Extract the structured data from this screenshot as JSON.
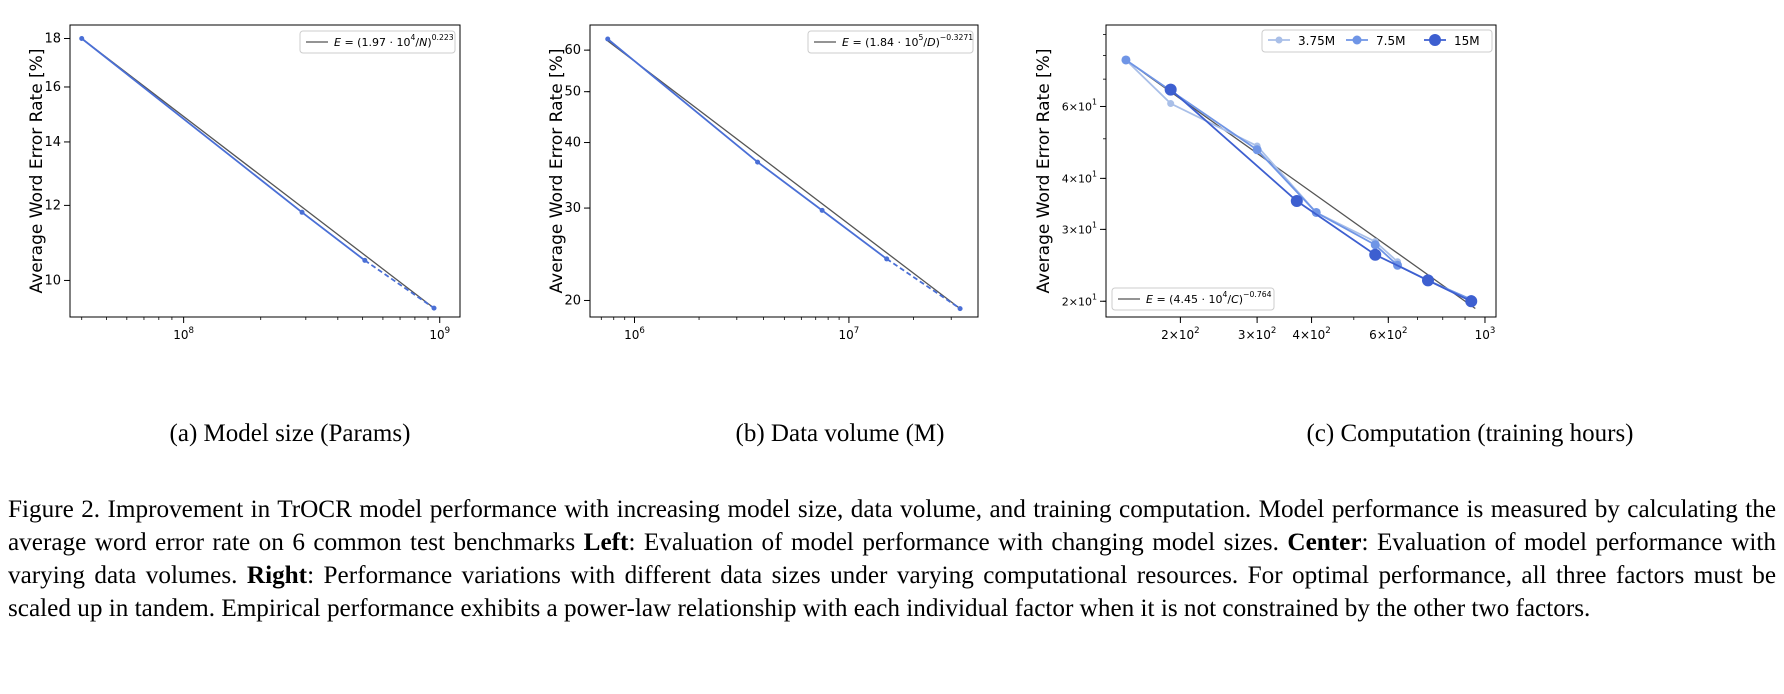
{
  "colors": {
    "series_main": "#4a6fd6",
    "fit_line": "#555555",
    "series_light": "#a9bfe8",
    "series_mid": "#6f95e6",
    "series_dark": "#3d5fd0",
    "axes": "#000000"
  },
  "chart_data": [
    {
      "type": "line",
      "xscale": "log",
      "yscale": "log",
      "xlabel": "",
      "ylabel": "Average Word Error Rate [%]",
      "xlim": [
        36000000,
        1200000000
      ],
      "ylim": [
        9.15,
        18.6
      ],
      "xticks": [
        {
          "value": 100000000,
          "label": "10^8"
        },
        {
          "value": 1000000000,
          "label": "10^9"
        }
      ],
      "yticks": [
        {
          "value": 10,
          "label": "10"
        },
        {
          "value": 12,
          "label": "12"
        },
        {
          "value": 14,
          "label": "14"
        },
        {
          "value": 16,
          "label": "16"
        },
        {
          "value": 18,
          "label": "18"
        }
      ],
      "legend": {
        "position": "top-right",
        "entries": [
          {
            "type": "fit",
            "base": "1.97 · 10",
            "exp_inner": "4",
            "var": "N",
            "exp_outer": "0.223"
          }
        ]
      },
      "series": [
        {
          "role": "data",
          "x": [
            40000000,
            290000000,
            510000000,
            950000000
          ],
          "y": [
            18.0,
            11.8,
            10.5,
            9.35
          ]
        }
      ],
      "fit": {
        "role": "fit",
        "x": [
          40000000,
          950000000
        ],
        "y": [
          18.0,
          9.35
        ]
      },
      "caption": "(a) Model size (Params)"
    },
    {
      "type": "line",
      "xscale": "log",
      "yscale": "log",
      "xlabel": "",
      "ylabel": "Average Word Error Rate [%]",
      "xlim": [
        620000,
        40000000
      ],
      "ylim": [
        18.6,
        67
      ],
      "xticks": [
        {
          "value": 1000000,
          "label": "10^6"
        },
        {
          "value": 10000000,
          "label": "10^7"
        }
      ],
      "yticks": [
        {
          "value": 20,
          "label": "20"
        },
        {
          "value": 30,
          "label": "30"
        },
        {
          "value": 40,
          "label": "40"
        },
        {
          "value": 50,
          "label": "50"
        },
        {
          "value": 60,
          "label": "60"
        }
      ],
      "legend": {
        "position": "top-right",
        "entries": [
          {
            "type": "fit",
            "base": "1.84 · 10",
            "exp_inner": "5",
            "var": "D",
            "exp_outer": "−0.3271"
          }
        ]
      },
      "series": [
        {
          "role": "data",
          "x": [
            750000,
            3750000,
            7500000,
            15000000,
            33000000
          ],
          "y": [
            63,
            36.7,
            29.7,
            24.0,
            19.3
          ]
        }
      ],
      "fit": {
        "role": "fit",
        "x": [
          750000,
          33000000
        ],
        "y": [
          62.5,
          19.3
        ]
      },
      "caption": "(b) Data volume (M)"
    },
    {
      "type": "line",
      "xscale": "log",
      "yscale": "log",
      "xlabel": "",
      "ylabel": "Average Word Error Rate [%]",
      "xlim": [
        135,
        1060
      ],
      "ylim": [
        18.3,
        95
      ],
      "xticks": [
        {
          "value": 200,
          "label": "2×10^2"
        },
        {
          "value": 300,
          "label": "3×10^2"
        },
        {
          "value": 400,
          "label": "4×10^2"
        },
        {
          "value": 600,
          "label": "6×10^2"
        },
        {
          "value": 1000,
          "label": "10^3"
        }
      ],
      "yticks": [
        {
          "value": 20,
          "label": "2×10^1"
        },
        {
          "value": 30,
          "label": "3×10^1"
        },
        {
          "value": 40,
          "label": "4×10^1"
        },
        {
          "value": 60,
          "label": "6×10^1"
        }
      ],
      "legend": {
        "position": "top-right",
        "entries": [
          {
            "name": "3.75M"
          },
          {
            "name": "7.5M"
          },
          {
            "name": "15M"
          }
        ]
      },
      "legend2": {
        "position": "bottom-left",
        "entries": [
          {
            "type": "fit",
            "base": "4.45 · 10",
            "exp_inner": "4",
            "var": "C",
            "exp_outer": "−0.764"
          }
        ]
      },
      "series": [
        {
          "name": "3.75M",
          "color_key": "series_light",
          "marker": 7,
          "x": [
            150,
            190,
            300,
            410,
            560,
            630
          ],
          "y": [
            78,
            61,
            48,
            33,
            28,
            25
          ]
        },
        {
          "name": "7.5M",
          "color_key": "series_mid",
          "marker": 9,
          "x": [
            150,
            300,
            410,
            560,
            630,
            740,
            930
          ],
          "y": [
            78,
            47,
            33,
            27.5,
            24.5,
            22.5,
            20.2
          ]
        },
        {
          "name": "15M",
          "color_key": "series_dark",
          "marker": 12,
          "x": [
            190,
            370,
            560,
            740,
            930
          ],
          "y": [
            66,
            35.2,
            26,
            22.5,
            20
          ]
        }
      ],
      "fit": {
        "role": "fit",
        "x": [
          150,
          950
        ],
        "y": [
          78,
          19.2
        ]
      },
      "caption": "(c) Computation (training hours)"
    }
  ],
  "captions": {
    "a": "(a) Model size (Params)",
    "b": "(b) Data volume (M)",
    "c": "(c) Computation (training hours)"
  },
  "figure_caption": {
    "p1": "Figure 2. Improvement in TrOCR model performance with increasing model size, data volume, and training computation. Model performance is measured by calculating the average word error rate on 6 common test benchmarks ",
    "b1": "Left",
    "p2": ": Evaluation of model performance with changing model sizes. ",
    "b2": "Center",
    "p3": ": Evaluation of model performance with varying data volumes. ",
    "b3": "Right",
    "p4": ": Performance variations with different data sizes under varying computational resources.  For optimal performance, all three factors must be scaled up in tandem.  Empirical performance exhibits a power-law relationship with each individual factor when it is not constrained by the other two factors."
  }
}
